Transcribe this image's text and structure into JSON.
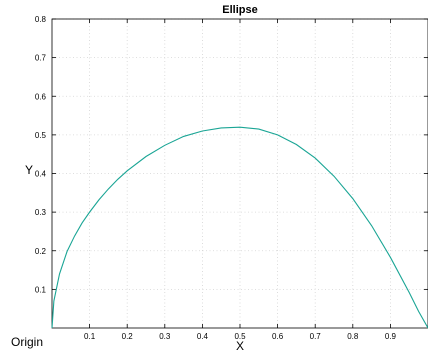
{
  "chart_data": {
    "type": "line",
    "title": "Ellipse",
    "xlabel": "X",
    "ylabel": "Y",
    "xlim": [
      0,
      1
    ],
    "ylim": [
      0,
      0.8
    ],
    "grid": true,
    "legend": "none",
    "origin_label": "Origin",
    "x_ticks": [
      0.1,
      0.2,
      0.3,
      0.4,
      0.5,
      0.6,
      0.7,
      0.8,
      0.9
    ],
    "y_ticks": [
      0.1,
      0.2,
      0.3,
      0.4,
      0.5,
      0.6,
      0.7,
      0.8
    ],
    "series": [
      {
        "color": "#1aa595",
        "x": [
          0,
          0.005,
          0.02,
          0.04,
          0.06,
          0.08,
          0.1,
          0.125,
          0.15,
          0.175,
          0.2,
          0.25,
          0.3,
          0.35,
          0.4,
          0.45,
          0.5,
          0.55,
          0.6,
          0.65,
          0.7,
          0.75,
          0.8,
          0.85,
          0.9,
          0.95,
          0.975,
          1.0
        ],
        "y": [
          0,
          0.07,
          0.14,
          0.198,
          0.238,
          0.272,
          0.3,
          0.332,
          0.36,
          0.385,
          0.407,
          0.444,
          0.473,
          0.496,
          0.51,
          0.518,
          0.52,
          0.515,
          0.5,
          0.475,
          0.44,
          0.393,
          0.335,
          0.265,
          0.183,
          0.092,
          0.043,
          0.0
        ]
      }
    ]
  }
}
